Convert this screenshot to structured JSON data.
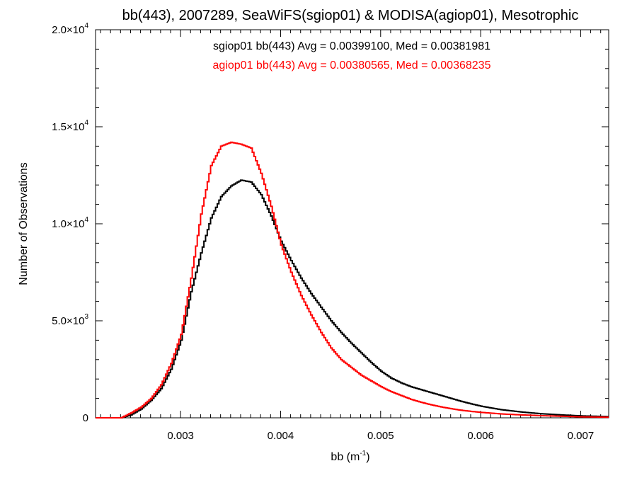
{
  "chart_data": {
    "type": "line",
    "title": "bb(443), 2007289, SeaWiFS(sgiop01) & MODISA(agiop01), Mesotrophic",
    "xlabel": "bb (m",
    "xlabel_sup": "-1",
    "xlabel_suffix": ")",
    "ylabel": "Number of Observations",
    "xlim": [
      0.00215,
      0.00728
    ],
    "ylim": [
      0,
      20000
    ],
    "grid": false,
    "step": true,
    "x_ticks": [
      {
        "value": 0.003,
        "label": "0.003"
      },
      {
        "value": 0.004,
        "label": "0.004"
      },
      {
        "value": 0.005,
        "label": "0.005"
      },
      {
        "value": 0.006,
        "label": "0.006"
      },
      {
        "value": 0.007,
        "label": "0.007"
      }
    ],
    "y_ticks": [
      {
        "value": 0,
        "label": "0",
        "sup": ""
      },
      {
        "value": 5000,
        "label": "5.0×10",
        "sup": "3"
      },
      {
        "value": 10000,
        "label": "1.0×10",
        "sup": "4"
      },
      {
        "value": 15000,
        "label": "1.5×10",
        "sup": "4"
      },
      {
        "value": 20000,
        "label": "2.0×10",
        "sup": "4"
      }
    ],
    "annotations": [
      {
        "text": "sgiop01 bb(443) Avg = 0.00399100, Med = 0.00381981",
        "color": "#000000"
      },
      {
        "text": "agiop01 bb(443) Avg = 0.00380565, Med = 0.00368235",
        "color": "#ff0000"
      }
    ],
    "series": [
      {
        "color": "#000000",
        "x": [
          0.00215,
          0.0024,
          0.0025,
          0.0026,
          0.0027,
          0.0028,
          0.0029,
          0.003,
          0.0031,
          0.0032,
          0.0033,
          0.0034,
          0.0035,
          0.0036,
          0.0037,
          0.0038,
          0.0039,
          0.004,
          0.0041,
          0.0042,
          0.0043,
          0.0044,
          0.0045,
          0.0046,
          0.0047,
          0.0048,
          0.0049,
          0.005,
          0.0051,
          0.0052,
          0.0053,
          0.0054,
          0.0055,
          0.0056,
          0.0057,
          0.0058,
          0.0059,
          0.006,
          0.0062,
          0.0064,
          0.0066,
          0.0068,
          0.007,
          0.00728
        ],
        "y": [
          0,
          0,
          150,
          450,
          900,
          1500,
          2500,
          4000,
          6500,
          8500,
          10300,
          11400,
          11950,
          12250,
          12150,
          11500,
          10400,
          9100,
          8100,
          7200,
          6400,
          5700,
          5000,
          4400,
          3850,
          3350,
          2850,
          2400,
          2050,
          1800,
          1600,
          1450,
          1300,
          1150,
          1000,
          850,
          720,
          600,
          420,
          300,
          210,
          150,
          100,
          60
        ]
      },
      {
        "color": "#ff0000",
        "x": [
          0.00215,
          0.0024,
          0.0025,
          0.0026,
          0.0027,
          0.0028,
          0.0029,
          0.003,
          0.0031,
          0.0032,
          0.0033,
          0.0034,
          0.0035,
          0.0036,
          0.0037,
          0.0038,
          0.0039,
          0.004,
          0.0041,
          0.0042,
          0.0043,
          0.0044,
          0.0045,
          0.0046,
          0.0047,
          0.0048,
          0.0049,
          0.005,
          0.0051,
          0.0052,
          0.0053,
          0.0054,
          0.0055,
          0.0056,
          0.0057,
          0.0058,
          0.0059,
          0.006,
          0.0062,
          0.0064,
          0.0066,
          0.0068,
          0.007,
          0.00728
        ],
        "y": [
          0,
          0,
          250,
          550,
          1000,
          1700,
          2800,
          4300,
          7200,
          10500,
          13000,
          14000,
          14200,
          14100,
          13900,
          12600,
          10900,
          8900,
          7500,
          6300,
          5300,
          4400,
          3600,
          3000,
          2600,
          2200,
          1900,
          1600,
          1350,
          1150,
          950,
          800,
          670,
          560,
          470,
          390,
          330,
          280,
          200,
          150,
          110,
          80,
          50,
          30
        ]
      }
    ]
  }
}
